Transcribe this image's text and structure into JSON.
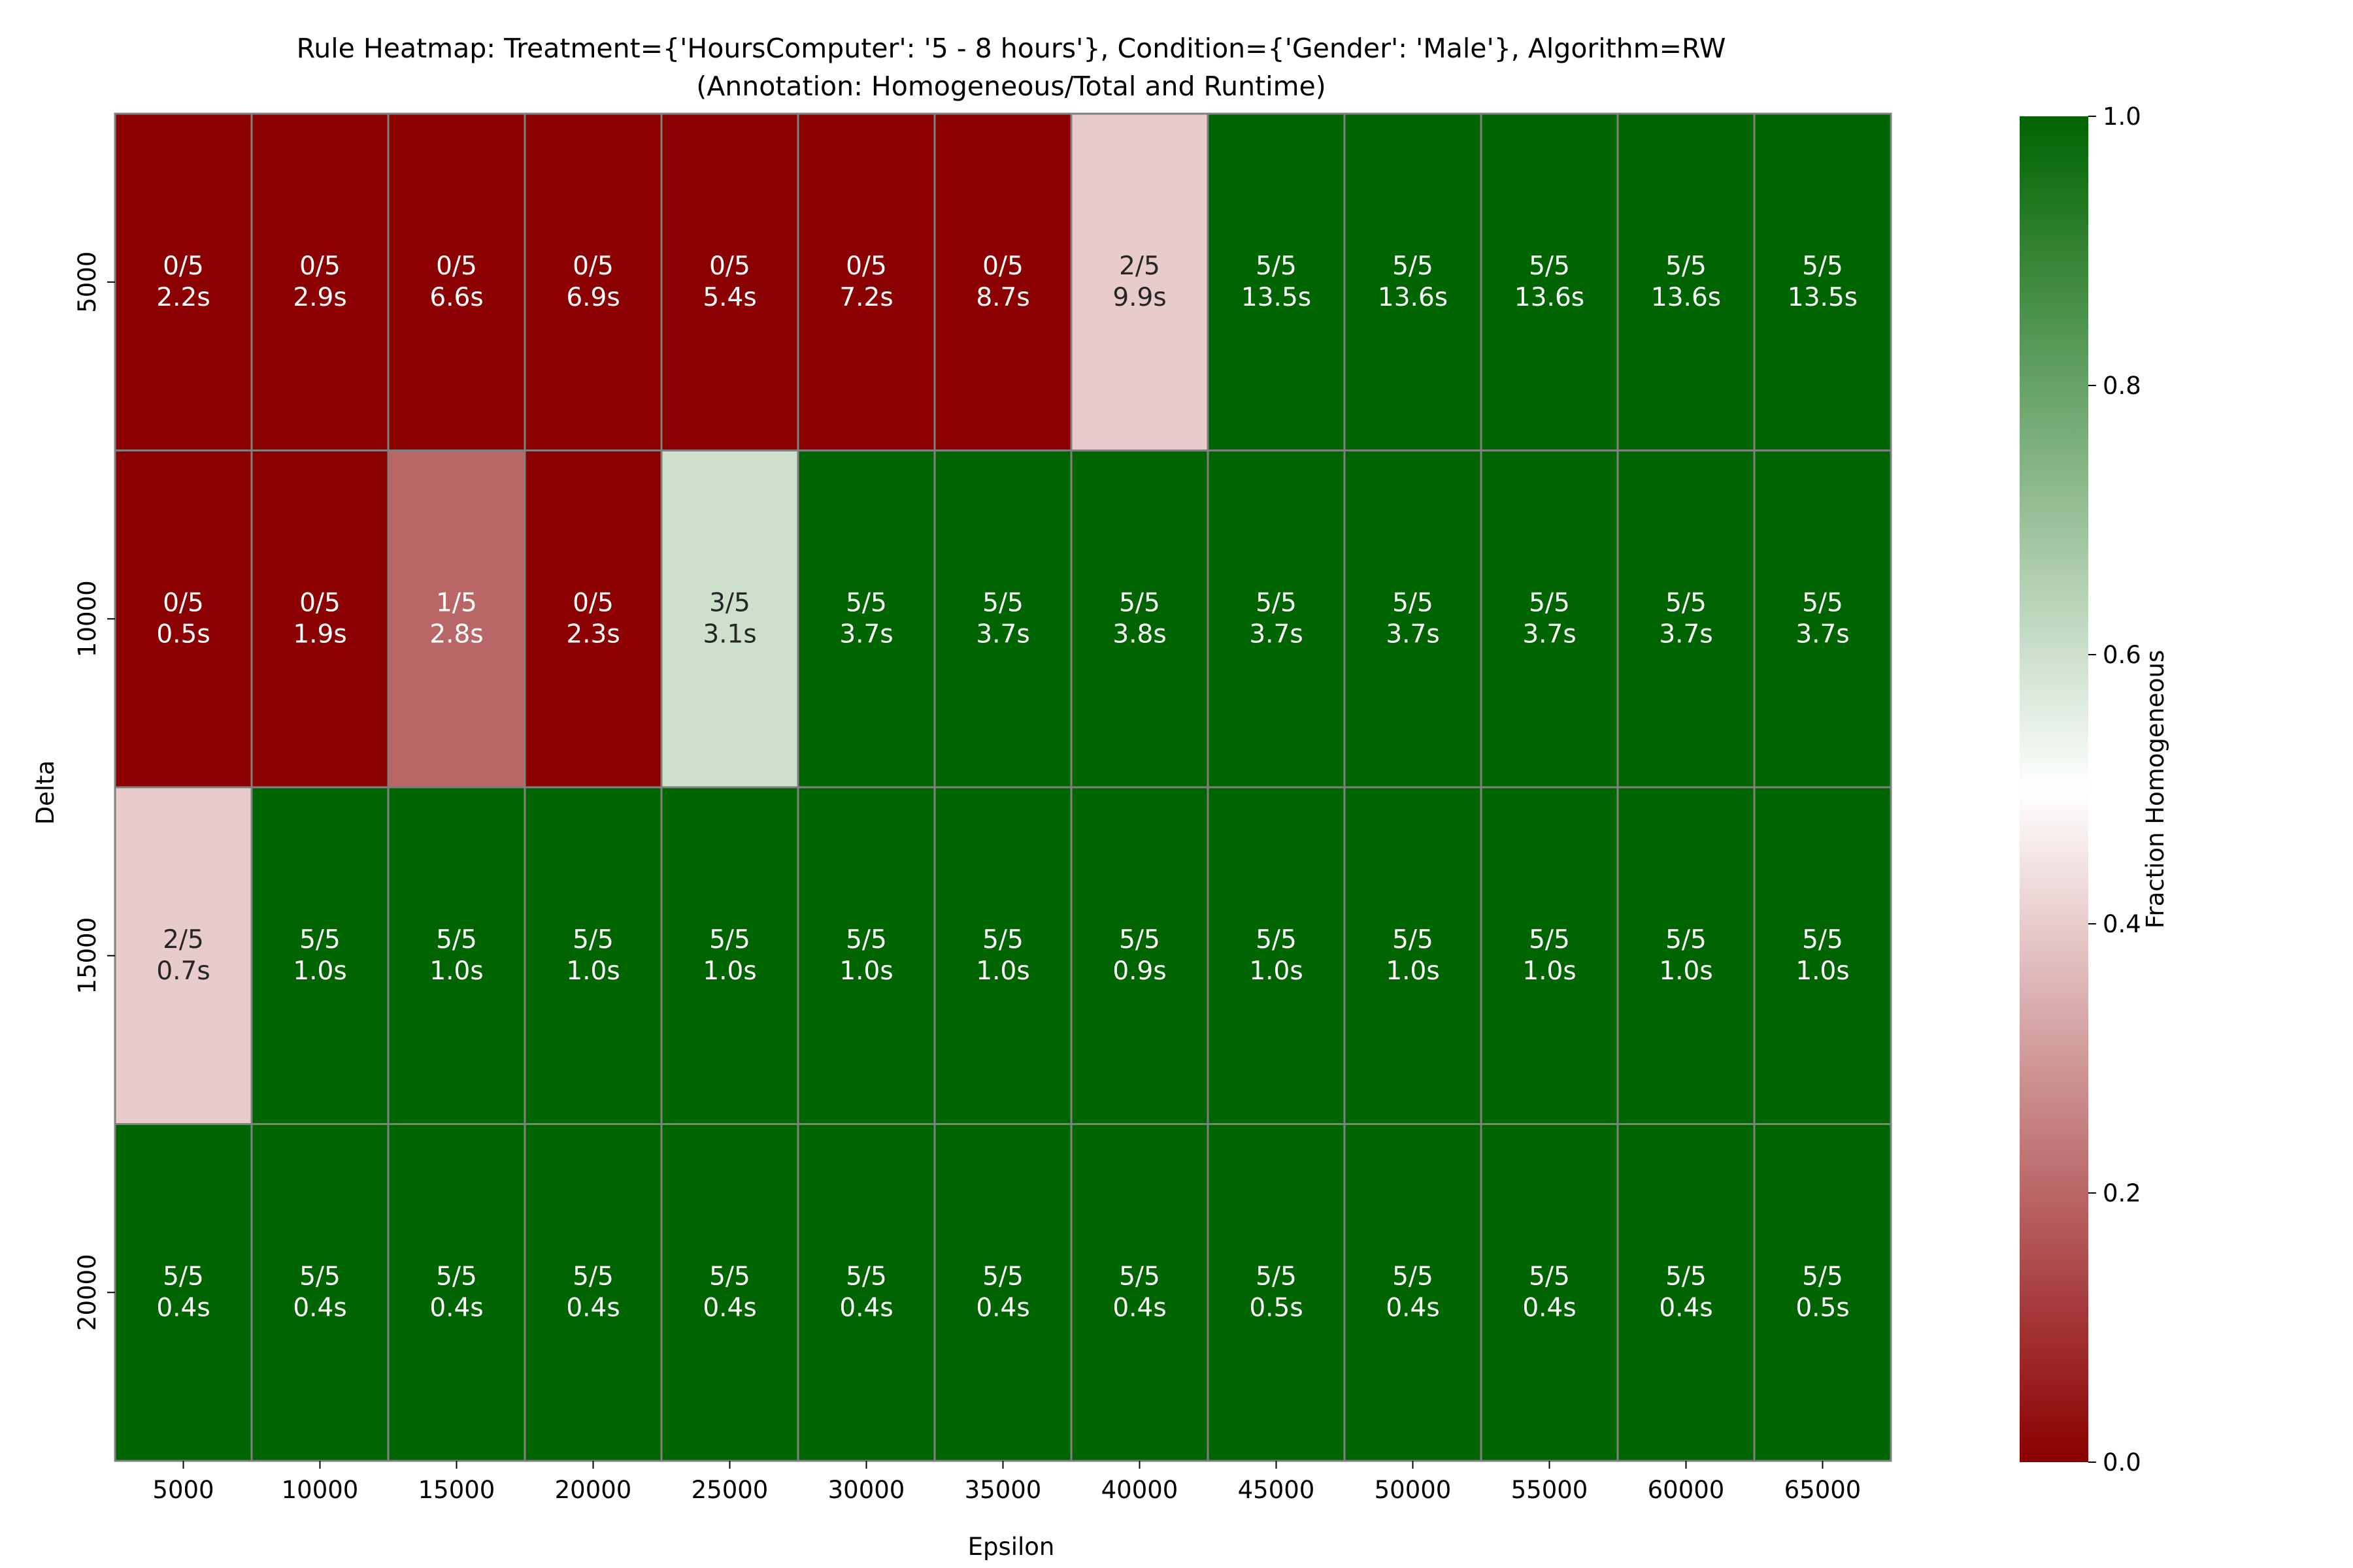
{
  "chart_data": {
    "type": "heatmap",
    "title": "Rule Heatmap: Treatment={'HoursComputer': '5 - 8 hours'}, Condition={'Gender': 'Male'}, Algorithm=RW",
    "subtitle": "(Annotation: Homogeneous/Total and Runtime)",
    "xlabel": "Epsilon",
    "ylabel": "Delta",
    "x": [
      "5000",
      "10000",
      "15000",
      "20000",
      "25000",
      "30000",
      "35000",
      "40000",
      "45000",
      "50000",
      "55000",
      "60000",
      "65000"
    ],
    "y": [
      "5000",
      "10000",
      "15000",
      "20000"
    ],
    "values": [
      [
        0,
        0,
        0,
        0,
        0,
        0,
        0,
        0.4,
        1,
        1,
        1,
        1,
        1
      ],
      [
        0,
        0,
        0.2,
        0,
        0.6,
        1,
        1,
        1,
        1,
        1,
        1,
        1,
        1
      ],
      [
        0.4,
        1,
        1,
        1,
        1,
        1,
        1,
        1,
        1,
        1,
        1,
        1,
        1
      ],
      [
        1,
        1,
        1,
        1,
        1,
        1,
        1,
        1,
        1,
        1,
        1,
        1,
        1
      ]
    ],
    "annotations_ratio": [
      [
        "0/5",
        "0/5",
        "0/5",
        "0/5",
        "0/5",
        "0/5",
        "0/5",
        "2/5",
        "5/5",
        "5/5",
        "5/5",
        "5/5",
        "5/5"
      ],
      [
        "0/5",
        "0/5",
        "1/5",
        "0/5",
        "3/5",
        "5/5",
        "5/5",
        "5/5",
        "5/5",
        "5/5",
        "5/5",
        "5/5",
        "5/5"
      ],
      [
        "2/5",
        "5/5",
        "5/5",
        "5/5",
        "5/5",
        "5/5",
        "5/5",
        "5/5",
        "5/5",
        "5/5",
        "5/5",
        "5/5",
        "5/5"
      ],
      [
        "5/5",
        "5/5",
        "5/5",
        "5/5",
        "5/5",
        "5/5",
        "5/5",
        "5/5",
        "5/5",
        "5/5",
        "5/5",
        "5/5",
        "5/5"
      ]
    ],
    "annotations_runtime": [
      [
        "2.2s",
        "2.9s",
        "6.6s",
        "6.9s",
        "5.4s",
        "7.2s",
        "8.7s",
        "9.9s",
        "13.5s",
        "13.6s",
        "13.6s",
        "13.6s",
        "13.5s"
      ],
      [
        "0.5s",
        "1.9s",
        "2.8s",
        "2.3s",
        "3.1s",
        "3.7s",
        "3.7s",
        "3.8s",
        "3.7s",
        "3.7s",
        "3.7s",
        "3.7s",
        "3.7s"
      ],
      [
        "0.7s",
        "1.0s",
        "1.0s",
        "1.0s",
        "1.0s",
        "1.0s",
        "1.0s",
        "0.9s",
        "1.0s",
        "1.0s",
        "1.0s",
        "1.0s",
        "1.0s"
      ],
      [
        "0.4s",
        "0.4s",
        "0.4s",
        "0.4s",
        "0.4s",
        "0.4s",
        "0.4s",
        "0.4s",
        "0.5s",
        "0.4s",
        "0.4s",
        "0.4s",
        "0.5s"
      ]
    ],
    "colorbar": {
      "label": "Fraction Homogeneous",
      "range": [
        0,
        1
      ],
      "ticks": [
        "0.0",
        "0.2",
        "0.4",
        "0.6",
        "0.8",
        "1.0"
      ],
      "colors": [
        "#8b0000",
        "#ffffff",
        "#006400"
      ]
    },
    "cell_border_color": "#808080",
    "grid": false
  }
}
